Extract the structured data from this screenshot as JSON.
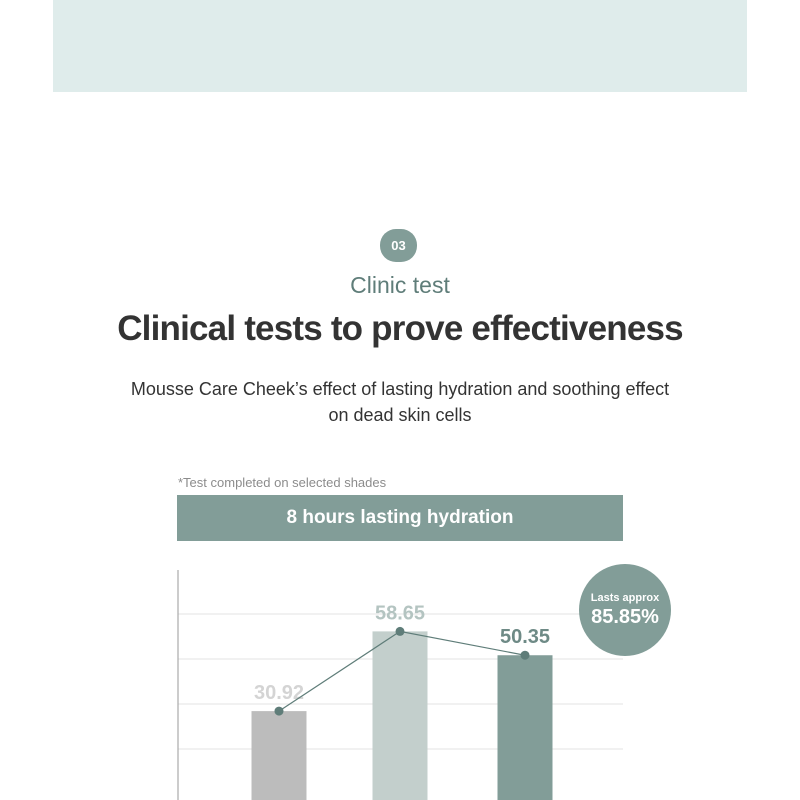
{
  "section": {
    "number": "03",
    "eyebrow": "Clinic test",
    "headline": "Clinical tests to prove effectiveness",
    "description_line1": "Mousse Care Cheek’s effect of lasting hydration and soothing effect",
    "description_line2": "on dead skin cells",
    "footnote": "*Test completed on selected shades"
  },
  "callout": {
    "line1": "Lasts approx",
    "line2": "85.85%"
  },
  "colors": {
    "accent": "#829d98",
    "banner": "#dfeceb",
    "bar_1": "#bcbcbc",
    "bar_2": "#c3cfcc",
    "bar_3": "#829d98",
    "label_light": "#d4d4d4",
    "label_mid": "#b4c4c1",
    "label_dark": "#6e8a86",
    "trend_line": "#5f7d79"
  },
  "chart_data": {
    "type": "bar",
    "title": "8 hours lasting hydration",
    "categories": [
      "",
      "",
      ""
    ],
    "values": [
      30.92,
      58.65,
      50.35
    ],
    "value_labels": [
      "30.92",
      "58.65",
      "50.35"
    ],
    "ylim": [
      0,
      80
    ],
    "grid": true,
    "trend_line": true
  }
}
